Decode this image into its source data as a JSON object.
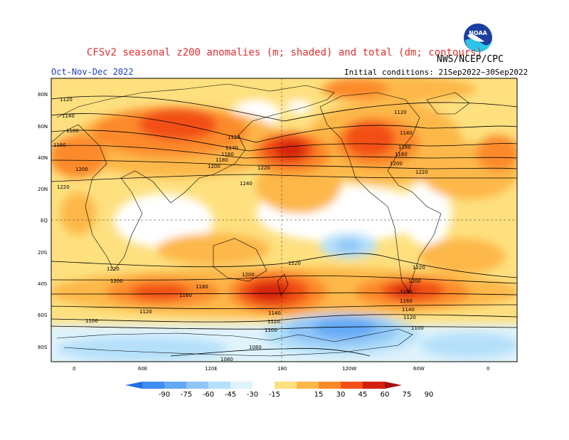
{
  "header": {
    "title": "CFSv2 seasonal z200 anomalies (m; shaded) and total (dm; contours)",
    "agency": "NWS/NCEP/CPC",
    "season": "Oct-Nov-Dec 2022",
    "initial_conditions": "Initial conditions: 21Sep2022~30Sep2022",
    "logo": "NOAA",
    "logo_icon": "noaa-logo"
  },
  "map": {
    "lat_labels": [
      "80N",
      "60N",
      "40N",
      "20N",
      "EQ",
      "20S",
      "40S",
      "60S",
      "80S"
    ],
    "lon_labels": [
      "0",
      "60E",
      "120E",
      "180",
      "120W",
      "60W",
      "0"
    ],
    "contour_levels": [
      "1080",
      "1100",
      "1120",
      "1140",
      "1160",
      "1180",
      "1200",
      "1220",
      "1240"
    ]
  },
  "legend": {
    "labels": [
      "-90",
      "-75",
      "-60",
      "-45",
      "-30",
      "-15",
      "15",
      "30",
      "45",
      "60",
      "75",
      "90"
    ],
    "colors": [
      "#1e6fe0",
      "#3f8ff0",
      "#63a9f5",
      "#8fc6f7",
      "#b5e0fa",
      "#dff3fd",
      "#ffffff",
      "#fee07f",
      "#fdb84a",
      "#fc8a2a",
      "#f25016",
      "#d4200f",
      "#a80d0d"
    ]
  }
}
